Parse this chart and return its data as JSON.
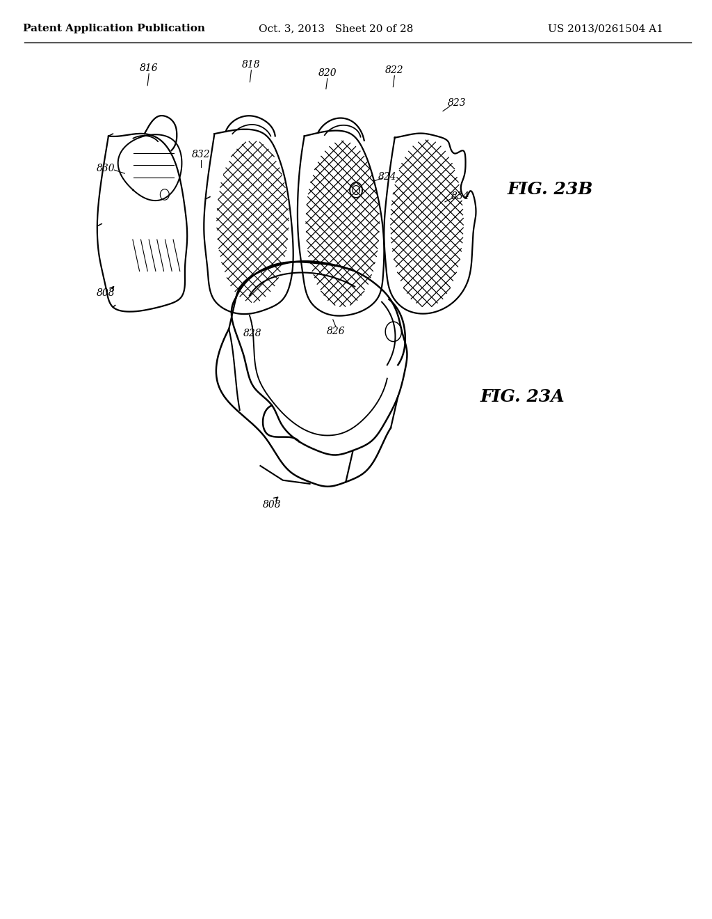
{
  "background_color": "#ffffff",
  "header_left": "Patent Application Publication",
  "header_center": "Oct. 3, 2013   Sheet 20 of 28",
  "header_right": "US 2013/0261504 A1",
  "fig_label_top": "FIG. 23B",
  "fig_label_bottom": "FIG. 23A",
  "line_color": "#000000",
  "text_color": "#000000",
  "header_fontsize": 11,
  "ref_fontsize": 10,
  "fig_label_fontsize": 18
}
